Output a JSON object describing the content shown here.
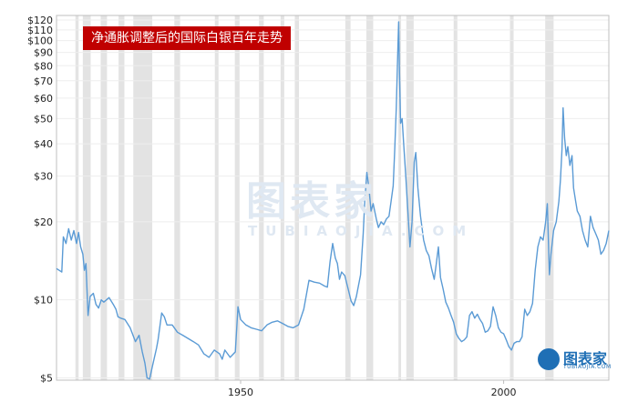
{
  "title": "净通胀调整后的国际白银百年走势",
  "watermark": {
    "text": "图表家",
    "sub": "TUBIAOJIA.COM"
  },
  "logo": {
    "text": "图表家",
    "sub": "TUBIAOJIA.COM",
    "icon": "head-icon"
  },
  "colors": {
    "line": "#5b9bd5",
    "recession": "#e3e3e3",
    "title_bg": "#c00000"
  },
  "chart_data": {
    "type": "line",
    "title": "净通胀调整后的国际白银百年走势",
    "y_scale": "log",
    "ylim": [
      4.9,
      125
    ],
    "y_ticks": [
      {
        "value": 5,
        "label": "$5"
      },
      {
        "value": 10,
        "label": "$10"
      },
      {
        "value": 20,
        "label": "$20"
      },
      {
        "value": 30,
        "label": "$30"
      },
      {
        "value": 40,
        "label": "$40"
      },
      {
        "value": 50,
        "label": "$50"
      },
      {
        "value": 60,
        "label": "$60"
      },
      {
        "value": 70,
        "label": "$70"
      },
      {
        "value": 80,
        "label": "$80"
      },
      {
        "value": 90,
        "label": "$90"
      },
      {
        "value": 100,
        "label": "$100"
      },
      {
        "value": 110,
        "label": "$110"
      },
      {
        "value": 120,
        "label": "$120"
      }
    ],
    "xlim": [
      1915,
      2020
    ],
    "x_ticks": [
      {
        "value": 1950,
        "label": "1950"
      },
      {
        "value": 2000,
        "label": "2000"
      }
    ],
    "recessions": [
      [
        1918.6,
        1919.2
      ],
      [
        1920.0,
        1921.5
      ],
      [
        1923.4,
        1924.6
      ],
      [
        1926.8,
        1927.9
      ],
      [
        1929.6,
        1933.2
      ],
      [
        1937.4,
        1938.5
      ],
      [
        1945.1,
        1945.8
      ],
      [
        1948.9,
        1949.8
      ],
      [
        1953.5,
        1954.4
      ],
      [
        1957.6,
        1958.3
      ],
      [
        1960.3,
        1961.1
      ],
      [
        1969.9,
        1970.9
      ],
      [
        1973.9,
        1975.2
      ],
      [
        1980.0,
        1980.5
      ],
      [
        1981.5,
        1982.9
      ],
      [
        1990.5,
        1991.2
      ],
      [
        2001.2,
        2001.9
      ],
      [
        2007.9,
        2009.5
      ]
    ],
    "series": [
      {
        "points": [
          [
            1915.0,
            13.2
          ],
          [
            1915.5,
            13.0
          ],
          [
            1916.0,
            12.8
          ],
          [
            1916.3,
            17.5
          ],
          [
            1916.8,
            16.5
          ],
          [
            1917.3,
            18.8
          ],
          [
            1917.8,
            17.0
          ],
          [
            1918.3,
            18.5
          ],
          [
            1918.8,
            16.5
          ],
          [
            1919.2,
            18.2
          ],
          [
            1919.6,
            16.0
          ],
          [
            1920.0,
            15.0
          ],
          [
            1920.3,
            13.0
          ],
          [
            1920.6,
            13.8
          ],
          [
            1921.0,
            8.7
          ],
          [
            1921.4,
            10.3
          ],
          [
            1922.0,
            10.6
          ],
          [
            1922.5,
            9.6
          ],
          [
            1923.0,
            9.3
          ],
          [
            1923.5,
            10.0
          ],
          [
            1924.0,
            9.8
          ],
          [
            1925.0,
            10.2
          ],
          [
            1925.8,
            9.6
          ],
          [
            1926.3,
            9.2
          ],
          [
            1926.7,
            8.6
          ],
          [
            1927.2,
            8.5
          ],
          [
            1928.0,
            8.4
          ],
          [
            1929.0,
            7.8
          ],
          [
            1930.0,
            6.9
          ],
          [
            1930.7,
            7.3
          ],
          [
            1931.3,
            6.3
          ],
          [
            1931.8,
            5.7
          ],
          [
            1932.2,
            5.0
          ],
          [
            1932.7,
            4.95
          ],
          [
            1933.2,
            5.5
          ],
          [
            1934.0,
            6.5
          ],
          [
            1934.3,
            7.0
          ],
          [
            1935.0,
            8.9
          ],
          [
            1935.5,
            8.6
          ],
          [
            1936.0,
            8.0
          ],
          [
            1937.0,
            8.0
          ],
          [
            1938.0,
            7.5
          ],
          [
            1939.0,
            7.3
          ],
          [
            1940.0,
            7.1
          ],
          [
            1941.0,
            6.9
          ],
          [
            1942.0,
            6.7
          ],
          [
            1943.0,
            6.2
          ],
          [
            1944.0,
            6.0
          ],
          [
            1945.0,
            6.4
          ],
          [
            1946.0,
            6.2
          ],
          [
            1946.5,
            5.9
          ],
          [
            1947.0,
            6.4
          ],
          [
            1948.0,
            6.0
          ],
          [
            1949.0,
            6.3
          ],
          [
            1949.5,
            9.4
          ],
          [
            1950.0,
            8.4
          ],
          [
            1951.0,
            8.0
          ],
          [
            1952.0,
            7.8
          ],
          [
            1953.0,
            7.7
          ],
          [
            1954.0,
            7.6
          ],
          [
            1955.0,
            8.0
          ],
          [
            1956.0,
            8.2
          ],
          [
            1957.0,
            8.3
          ],
          [
            1958.0,
            8.1
          ],
          [
            1959.0,
            7.9
          ],
          [
            1960.0,
            7.8
          ],
          [
            1961.0,
            8.0
          ],
          [
            1962.0,
            9.2
          ],
          [
            1963.0,
            11.9
          ],
          [
            1964.0,
            11.7
          ],
          [
            1965.0,
            11.6
          ],
          [
            1966.0,
            11.3
          ],
          [
            1966.5,
            11.2
          ],
          [
            1967.0,
            14.0
          ],
          [
            1967.5,
            16.5
          ],
          [
            1968.0,
            14.5
          ],
          [
            1968.4,
            13.8
          ],
          [
            1968.8,
            12.0
          ],
          [
            1969.2,
            12.8
          ],
          [
            1969.8,
            12.4
          ],
          [
            1970.5,
            10.9
          ],
          [
            1971.0,
            9.9
          ],
          [
            1971.5,
            9.5
          ],
          [
            1972.0,
            10.3
          ],
          [
            1972.8,
            12.5
          ],
          [
            1973.3,
            18.0
          ],
          [
            1973.6,
            24.0
          ],
          [
            1974.0,
            31.0
          ],
          [
            1974.4,
            27.0
          ],
          [
            1974.8,
            22.0
          ],
          [
            1975.2,
            23.5
          ],
          [
            1975.8,
            20.5
          ],
          [
            1976.2,
            19.0
          ],
          [
            1976.7,
            20.0
          ],
          [
            1977.2,
            19.5
          ],
          [
            1977.7,
            20.5
          ],
          [
            1978.2,
            21.0
          ],
          [
            1978.6,
            24.0
          ],
          [
            1979.0,
            27.5
          ],
          [
            1979.3,
            38.0
          ],
          [
            1979.6,
            55.0
          ],
          [
            1979.9,
            95.0
          ],
          [
            1980.05,
            118.0
          ],
          [
            1980.2,
            75.0
          ],
          [
            1980.4,
            48.0
          ],
          [
            1980.7,
            50.0
          ],
          [
            1981.0,
            40.0
          ],
          [
            1981.4,
            30.0
          ],
          [
            1981.8,
            22.0
          ],
          [
            1982.2,
            16.0
          ],
          [
            1982.6,
            20.0
          ],
          [
            1983.0,
            34.0
          ],
          [
            1983.3,
            37.0
          ],
          [
            1983.7,
            27.0
          ],
          [
            1984.2,
            21.0
          ],
          [
            1984.8,
            17.0
          ],
          [
            1985.3,
            15.5
          ],
          [
            1985.8,
            14.8
          ],
          [
            1986.3,
            13.2
          ],
          [
            1986.8,
            12.0
          ],
          [
            1987.2,
            13.8
          ],
          [
            1987.6,
            16.0
          ],
          [
            1988.0,
            12.2
          ],
          [
            1988.5,
            11.0
          ],
          [
            1989.0,
            9.8
          ],
          [
            1989.5,
            9.3
          ],
          [
            1990.0,
            8.7
          ],
          [
            1990.5,
            8.2
          ],
          [
            1991.0,
            7.4
          ],
          [
            1991.5,
            7.1
          ],
          [
            1992.0,
            6.9
          ],
          [
            1992.5,
            7.0
          ],
          [
            1993.0,
            7.2
          ],
          [
            1993.5,
            8.7
          ],
          [
            1994.0,
            9.0
          ],
          [
            1994.5,
            8.5
          ],
          [
            1995.0,
            8.8
          ],
          [
            1995.5,
            8.4
          ],
          [
            1996.0,
            8.1
          ],
          [
            1996.5,
            7.5
          ],
          [
            1997.0,
            7.6
          ],
          [
            1997.5,
            7.9
          ],
          [
            1998.0,
            9.4
          ],
          [
            1998.5,
            8.7
          ],
          [
            1999.0,
            7.8
          ],
          [
            1999.5,
            7.5
          ],
          [
            2000.0,
            7.4
          ],
          [
            2000.5,
            7.0
          ],
          [
            2001.0,
            6.6
          ],
          [
            2001.5,
            6.4
          ],
          [
            2002.0,
            6.8
          ],
          [
            2002.5,
            6.9
          ],
          [
            2003.0,
            6.9
          ],
          [
            2003.5,
            7.2
          ],
          [
            2004.0,
            9.2
          ],
          [
            2004.5,
            8.7
          ],
          [
            2005.0,
            9.0
          ],
          [
            2005.5,
            9.7
          ],
          [
            2006.0,
            13.0
          ],
          [
            2006.5,
            16.0
          ],
          [
            2007.0,
            17.5
          ],
          [
            2007.5,
            17.0
          ],
          [
            2008.0,
            20.0
          ],
          [
            2008.3,
            23.5
          ],
          [
            2008.7,
            12.5
          ],
          [
            2009.0,
            15.0
          ],
          [
            2009.5,
            18.5
          ],
          [
            2010.0,
            20.0
          ],
          [
            2010.5,
            24.0
          ],
          [
            2010.8,
            29.0
          ],
          [
            2011.1,
            38.0
          ],
          [
            2011.3,
            55.0
          ],
          [
            2011.6,
            42.0
          ],
          [
            2011.9,
            36.0
          ],
          [
            2012.2,
            39.0
          ],
          [
            2012.6,
            33.0
          ],
          [
            2013.0,
            36.0
          ],
          [
            2013.3,
            27.0
          ],
          [
            2013.7,
            24.0
          ],
          [
            2014.0,
            22.0
          ],
          [
            2014.5,
            21.0
          ],
          [
            2015.0,
            18.5
          ],
          [
            2015.5,
            17.0
          ],
          [
            2016.0,
            16.0
          ],
          [
            2016.5,
            21.0
          ],
          [
            2017.0,
            19.0
          ],
          [
            2017.5,
            18.0
          ],
          [
            2018.0,
            17.0
          ],
          [
            2018.5,
            15.0
          ],
          [
            2019.0,
            15.5
          ],
          [
            2019.5,
            16.5
          ],
          [
            2020.0,
            18.5
          ]
        ]
      }
    ]
  }
}
